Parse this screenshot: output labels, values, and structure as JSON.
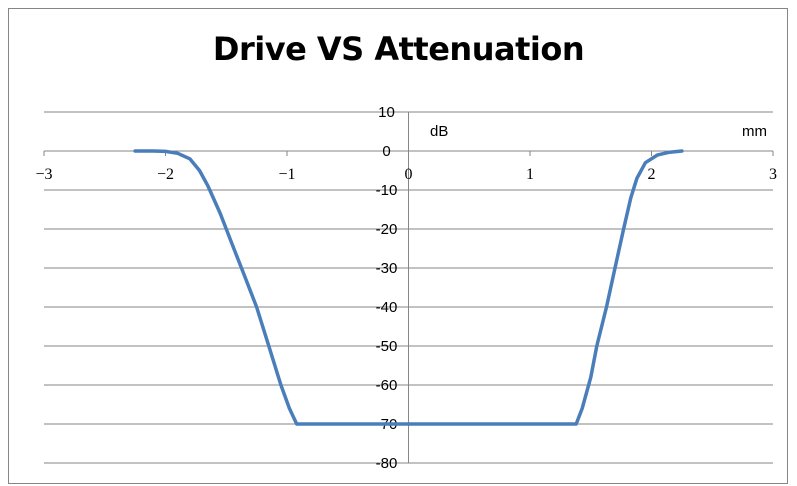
{
  "chart_data": {
    "type": "line",
    "title": "Drive VS Attenuation",
    "xlabel": "mm",
    "ylabel": "dB",
    "xlim": [
      -3,
      3
    ],
    "ylim": [
      -80,
      10
    ],
    "x_ticks": [
      -3,
      -2,
      -1,
      0,
      1,
      2,
      3
    ],
    "x_tick_labels": [
      "−3",
      "−2",
      "−1",
      "0",
      "1",
      "2",
      "3"
    ],
    "y_ticks": [
      10,
      0,
      -10,
      -20,
      -30,
      -40,
      -50,
      -60,
      -70,
      -80
    ],
    "y_tick_labels": [
      "10",
      "0",
      "-10",
      "-20",
      "-30",
      "-40",
      "-50",
      "-60",
      "-70",
      "-80"
    ],
    "grid": "horizontal",
    "legend": "none",
    "series": [
      {
        "color": "#4a7ebb",
        "points": [
          [
            -2.25,
            0
          ],
          [
            -2.1,
            0
          ],
          [
            -2.0,
            -0.1
          ],
          [
            -1.9,
            -0.6
          ],
          [
            -1.8,
            -2
          ],
          [
            -1.72,
            -5
          ],
          [
            -1.65,
            -9
          ],
          [
            -1.55,
            -16
          ],
          [
            -1.45,
            -24
          ],
          [
            -1.35,
            -32
          ],
          [
            -1.25,
            -40
          ],
          [
            -1.15,
            -50
          ],
          [
            -1.05,
            -60
          ],
          [
            -0.98,
            -66
          ],
          [
            -0.92,
            -70
          ],
          [
            0,
            -70
          ],
          [
            1.0,
            -70
          ],
          [
            1.38,
            -70
          ],
          [
            1.43,
            -66
          ],
          [
            1.5,
            -58
          ],
          [
            1.55,
            -50
          ],
          [
            1.63,
            -40
          ],
          [
            1.7,
            -30
          ],
          [
            1.77,
            -20
          ],
          [
            1.83,
            -12
          ],
          [
            1.88,
            -7
          ],
          [
            1.95,
            -3
          ],
          [
            2.05,
            -1
          ],
          [
            2.15,
            -0.3
          ],
          [
            2.25,
            0
          ]
        ]
      }
    ]
  }
}
